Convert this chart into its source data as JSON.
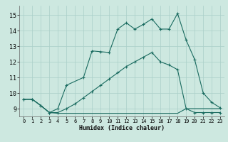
{
  "bg_color": "#cde8e0",
  "grid_color": "#aacfc8",
  "line_color": "#1a6b60",
  "xlabel": "Humidex (Indice chaleur)",
  "xlim": [
    -0.5,
    23.5
  ],
  "ylim": [
    8.5,
    15.6
  ],
  "yticks": [
    9,
    10,
    11,
    12,
    13,
    14,
    15
  ],
  "xticks": [
    0,
    1,
    2,
    3,
    4,
    5,
    6,
    7,
    8,
    9,
    10,
    11,
    12,
    13,
    14,
    15,
    16,
    17,
    18,
    19,
    20,
    21,
    22,
    23
  ],
  "s1_x": [
    0,
    1,
    2,
    3,
    4,
    5,
    7,
    8,
    9,
    10,
    11,
    12,
    13,
    14,
    15,
    16,
    17,
    18,
    19,
    20,
    21,
    22,
    23
  ],
  "s1_y": [
    9.6,
    9.6,
    9.2,
    8.75,
    9.0,
    10.5,
    11.0,
    12.7,
    12.65,
    12.6,
    14.1,
    14.5,
    14.1,
    14.4,
    14.75,
    14.1,
    14.1,
    15.1,
    13.4,
    12.15,
    10.0,
    9.4,
    9.05
  ],
  "s2_x": [
    0,
    1,
    2,
    3,
    4,
    5,
    6,
    7,
    8,
    9,
    10,
    11,
    12,
    13,
    14,
    15,
    16,
    17,
    18,
    19,
    20,
    21,
    22,
    23
  ],
  "s2_y": [
    9.6,
    9.6,
    9.2,
    8.75,
    8.75,
    9.0,
    9.3,
    9.7,
    10.1,
    10.5,
    10.9,
    11.3,
    11.7,
    12.0,
    12.3,
    12.6,
    12.0,
    11.8,
    11.5,
    9.0,
    8.75,
    8.75,
    8.75,
    8.75
  ],
  "s3_x": [
    0,
    1,
    2,
    3,
    4,
    5,
    6,
    7,
    8,
    9,
    10,
    11,
    12,
    13,
    14,
    15,
    16,
    17,
    18,
    19,
    20,
    21,
    22,
    23
  ],
  "s3_y": [
    9.6,
    9.6,
    9.2,
    8.75,
    8.7,
    8.7,
    8.7,
    8.7,
    8.7,
    8.7,
    8.7,
    8.7,
    8.7,
    8.7,
    8.7,
    8.7,
    8.7,
    8.7,
    8.7,
    9.0,
    9.0,
    9.0,
    9.0,
    9.0
  ]
}
